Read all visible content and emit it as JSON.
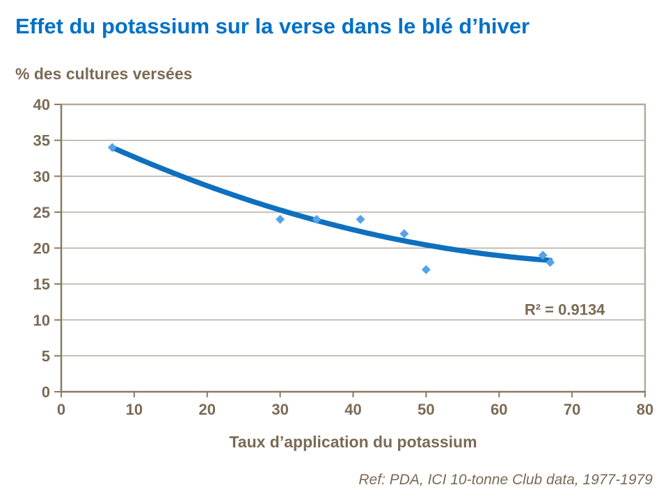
{
  "title": {
    "text": "Effet du potassium sur la verse dans le blé d’hiver",
    "color": "#0070C6"
  },
  "footer": {
    "reference": "Ref: PDA, ICI 10-tonne Club data, 1977-1979"
  },
  "chart_data": {
    "type": "scatter",
    "title": "Effet du potassium sur la verse dans le blé d’hiver",
    "xlabel": "Taux d’application du potassium",
    "ylabel": "% des cultures versées",
    "xlim": [
      0,
      80
    ],
    "ylim": [
      0,
      40
    ],
    "x_ticks": [
      0,
      10,
      20,
      30,
      40,
      50,
      60,
      70,
      80
    ],
    "y_ticks": [
      0,
      5,
      10,
      15,
      20,
      25,
      30,
      35,
      40
    ],
    "grid": "horizontal-only",
    "legend": "none",
    "points": [
      {
        "x": 7,
        "y": 34
      },
      {
        "x": 30,
        "y": 24
      },
      {
        "x": 35,
        "y": 24
      },
      {
        "x": 41,
        "y": 24
      },
      {
        "x": 47,
        "y": 22
      },
      {
        "x": 50,
        "y": 17
      },
      {
        "x": 66,
        "y": 19
      },
      {
        "x": 67,
        "y": 18
      }
    ],
    "trendline": {
      "type": "polynomial",
      "degree": 2,
      "coefficients": {
        "a": 0.00315,
        "b": -0.495,
        "c": 37.31
      },
      "x_start": 7,
      "x_end": 67
    },
    "annotation": {
      "text": "R² = 0.9134",
      "x": 69,
      "y": 11.5
    },
    "colors": {
      "trend_line": "#0F70BE",
      "marker": "#55A3E8",
      "axis_text": "#7A6A55",
      "axis_line": "#8A7A62",
      "gridline": "#A89D8D",
      "frame": "#B3AA9C",
      "title": "#0070C6"
    }
  }
}
